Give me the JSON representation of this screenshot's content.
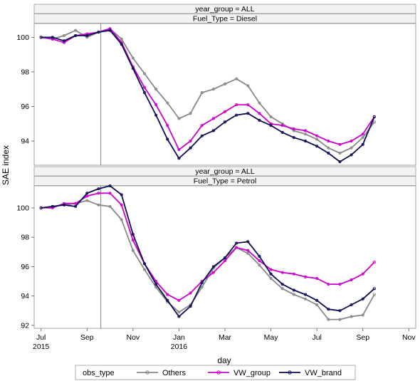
{
  "chart_data": {
    "type": "line",
    "ylabel": "SAE index",
    "xlabel": "day",
    "x_ticks": [
      {
        "label": "Jul",
        "sub": "2015",
        "month": 0
      },
      {
        "label": "Sep",
        "sub": "",
        "month": 2
      },
      {
        "label": "Nov",
        "sub": "",
        "month": 4
      },
      {
        "label": "Jan",
        "sub": "2016",
        "month": 6
      },
      {
        "label": "Mar",
        "sub": "",
        "month": 8
      },
      {
        "label": "May",
        "sub": "",
        "month": 10
      },
      {
        "label": "Jul",
        "sub": "",
        "month": 12
      },
      {
        "label": "Sep",
        "sub": "",
        "month": 14
      },
      {
        "label": "Nov",
        "sub": "",
        "month": 16
      }
    ],
    "x_range_months": [
      -0.3,
      16.3
    ],
    "reference_line_month": 2.6,
    "legend": {
      "title": "obs_type",
      "placement": "bottom",
      "items": [
        {
          "name": "Others",
          "color": "#888888"
        },
        {
          "name": "VW_group",
          "color": "#cc00cc"
        },
        {
          "name": "VW_brand",
          "color": "#0d0d55"
        }
      ]
    },
    "panels": [
      {
        "strip_top": "year_group = ALL",
        "strip_bottom": "Fuel_Type = Diesel",
        "ylim": [
          92.6,
          100.8
        ],
        "y_ticks": [
          94,
          96,
          98,
          100
        ],
        "series": [
          {
            "name": "Others",
            "x": [
              0,
              0.5,
              1,
              1.5,
              2,
              2.5,
              3,
              3.5,
              4,
              4.5,
              5,
              5.5,
              6,
              6.5,
              7,
              7.5,
              8,
              8.5,
              9,
              9.5,
              10,
              10.5,
              11,
              11.5,
              12,
              12.5,
              13,
              13.5,
              14,
              14.5
            ],
            "y": [
              100,
              99.9,
              100.1,
              100.4,
              100,
              100.3,
              100.5,
              99.9,
              98.8,
              97.9,
              97,
              96.2,
              95.3,
              95.6,
              96.8,
              97,
              97.3,
              97.6,
              97.2,
              96.2,
              95.4,
              95,
              94.6,
              94.4,
              94.1,
              93.6,
              93.3,
              93.6,
              94.2,
              95.1
            ]
          },
          {
            "name": "VW_group",
            "x": [
              0,
              0.5,
              1,
              1.5,
              2,
              2.5,
              3,
              3.5,
              4,
              4.5,
              5,
              5.5,
              6,
              6.5,
              7,
              7.5,
              8,
              8.5,
              9,
              9.5,
              10,
              10.5,
              11,
              11.5,
              12,
              12.5,
              13,
              13.5,
              14,
              14.5
            ],
            "y": [
              100,
              99.9,
              99.7,
              100.1,
              100.2,
              100.3,
              100.5,
              99.7,
              98.3,
              97.1,
              96.1,
              94.9,
              93.5,
              94,
              94.9,
              95.3,
              95.7,
              96.1,
              96.1,
              95.6,
              95,
              94.9,
              94.7,
              94.6,
              94.3,
              94,
              93.8,
              94,
              94.4,
              95.4
            ]
          },
          {
            "name": "VW_brand",
            "x": [
              0,
              0.5,
              1,
              1.5,
              2,
              2.5,
              3,
              3.5,
              4,
              4.5,
              5,
              5.5,
              6,
              6.5,
              7,
              7.5,
              8,
              8.5,
              9,
              9.5,
              10,
              10.5,
              11,
              11.5,
              12,
              12.5,
              13,
              13.5,
              14,
              14.5
            ],
            "y": [
              100,
              100,
              99.8,
              100.1,
              100.1,
              100.3,
              100.4,
              99.6,
              98.2,
              96.8,
              95.5,
              94.1,
              93,
              93.6,
              94.3,
              94.6,
              95.1,
              95.5,
              95.6,
              95.2,
              94.9,
              94.5,
              94.2,
              94,
              93.7,
              93.3,
              92.8,
              93.2,
              93.8,
              95.4
            ]
          }
        ]
      },
      {
        "strip_top": "year_group = ALL",
        "strip_bottom": "Fuel_Type = Petrol",
        "ylim": [
          91.8,
          101.5
        ],
        "y_ticks": [
          92,
          94,
          96,
          98,
          100
        ],
        "series": [
          {
            "name": "Others",
            "x": [
              0,
              0.5,
              1,
              1.5,
              2,
              2.5,
              3,
              3.5,
              4,
              4.5,
              5,
              5.5,
              6,
              6.5,
              7,
              7.5,
              8,
              8.5,
              9,
              9.5,
              10,
              10.5,
              11,
              11.5,
              12,
              12.5,
              13,
              13.5,
              14,
              14.5
            ],
            "y": [
              100,
              100.1,
              100.2,
              100.3,
              100.5,
              100.2,
              100.1,
              99.2,
              97.1,
              95.8,
              94.6,
              93.6,
              92.9,
              93.4,
              94.6,
              95.9,
              96.6,
              97.3,
              96.9,
              96.1,
              95.2,
              94.5,
              94.1,
              93.8,
              93.4,
              92.4,
              92.4,
              92.6,
              92.7,
              94.1
            ]
          },
          {
            "name": "VW_group",
            "x": [
              0,
              0.5,
              1,
              1.5,
              2,
              2.5,
              3,
              3.5,
              4,
              4.5,
              5,
              5.5,
              6,
              6.5,
              7,
              7.5,
              8,
              8.5,
              9,
              9.5,
              10,
              10.5,
              11,
              11.5,
              12,
              12.5,
              13,
              13.5,
              14,
              14.5
            ],
            "y": [
              100,
              100,
              100.3,
              100.3,
              100.8,
              101,
              101,
              100.2,
              97.8,
              96.2,
              95,
              94.1,
              93.7,
              94.2,
              95,
              95.6,
              96.4,
              97.3,
              97.1,
              96.4,
              95.8,
              95.6,
              95.5,
              95.3,
              95.2,
              94.8,
              94.8,
              95.1,
              95.5,
              96.3
            ]
          },
          {
            "name": "VW_brand",
            "x": [
              0,
              0.5,
              1,
              1.5,
              2,
              2.5,
              3,
              3.5,
              4,
              4.5,
              5,
              5.5,
              6,
              6.5,
              7,
              7.5,
              8,
              8.5,
              9,
              9.5,
              10,
              10.5,
              11,
              11.5,
              12,
              12.5,
              13,
              13.5,
              14,
              14.5
            ],
            "y": [
              100,
              100.1,
              100.2,
              100.1,
              101,
              101.3,
              101.5,
              100.9,
              98.2,
              96.2,
              94.8,
              93.7,
              92.6,
              93.3,
              94.9,
              96,
              96.6,
              97.6,
              97.7,
              96.7,
              95.5,
              94.8,
              94.4,
              94.1,
              93.7,
              93.1,
              93,
              93.4,
              93.8,
              94.5
            ]
          }
        ]
      }
    ]
  }
}
